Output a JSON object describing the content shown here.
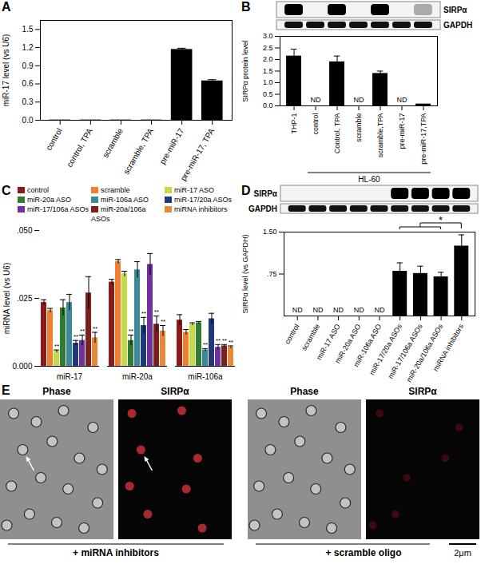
{
  "chart_data": [
    {
      "type": "bar",
      "title": "A",
      "ylabel": "miR-17 level (vs U6)",
      "categories": [
        "control",
        "control, TPA",
        "scramble",
        "scramble, TPA",
        "pre-miR-17",
        "pre-miR-17, TPA"
      ],
      "values": [
        0.005,
        0.005,
        0.005,
        0.005,
        1.17,
        0.65
      ],
      "errors": [
        null,
        null,
        null,
        null,
        0.02,
        0.02
      ],
      "color": "#000000",
      "ylim": [
        0,
        1.65
      ],
      "yticks": [
        {
          "value": 0,
          "label": "0.0"
        },
        0.3,
        0.6,
        0.9,
        1.2,
        1.5
      ]
    },
    {
      "type": "bar",
      "title": "B",
      "ylabel": "SIRPα protein level",
      "categories": [
        "THP-1",
        "control",
        "Control, TPA",
        "scramble",
        "scramble,TPA",
        "pre-miR-17",
        "pre-miR-17,TPA"
      ],
      "values": [
        2.15,
        null,
        1.9,
        null,
        1.4,
        null,
        0.08
      ],
      "errors": [
        0.3,
        null,
        0.25,
        null,
        0.1,
        null,
        null
      ],
      "value_labels": [
        null,
        "ND",
        null,
        "ND",
        null,
        "ND",
        null
      ],
      "color": "#000000",
      "ylim": [
        0,
        3
      ],
      "yticks": [
        {
          "value": 0,
          "label": "0.0"
        },
        0.5,
        {
          "value": 1,
          "label": "1.0"
        },
        1.5,
        {
          "value": 2,
          "label": "2.0"
        },
        2.5,
        {
          "value": 3,
          "label": "3.0"
        }
      ],
      "blot_labels": [
        "SIRPα",
        "GAPDH"
      ],
      "group": {
        "label": "HL-60",
        "categories": [
          "control",
          "Control, TPA",
          "scramble",
          "scramble,TPA",
          "pre-miR-17",
          "pre-miR-17,TPA"
        ]
      }
    },
    {
      "type": "bar",
      "title": "C",
      "ylabel": "miRNA level (vs U6)",
      "categories": [
        "miR-17",
        "miR-20a",
        "miR-106a"
      ],
      "legend": "top",
      "ylim": [
        0,
        0.05
      ],
      "yticks": [
        {
          "value": 0,
          "label": "0.000"
        },
        {
          "value": 0.025,
          "label": ".025"
        },
        {
          "value": 0.05,
          "label": ".050"
        }
      ],
      "series": [
        {
          "name": "control",
          "color": "#8B1A1A",
          "values": [
            0.0235,
            0.031,
            0.017
          ],
          "errors": [
            0.001,
            0.001,
            0.002
          ],
          "significance": [
            null,
            null,
            null
          ]
        },
        {
          "name": "scramble",
          "color": "#F08030",
          "values": [
            0.0205,
            0.0385,
            0.0125
          ],
          "errors": [
            0.0008,
            0.0008,
            0.001
          ],
          "significance": [
            null,
            null,
            null
          ]
        },
        {
          "name": "miR-17 ASO",
          "color": "#C5D94A",
          "values": [
            0.0055,
            0.034,
            0.0155
          ],
          "errors": [
            0.0005,
            0.001,
            0.0005
          ],
          "significance": [
            "**",
            null,
            null
          ]
        },
        {
          "name": "miR-20a ASO",
          "color": "#2E7D32",
          "values": [
            0.0215,
            0.0095,
            0.016
          ],
          "errors": [
            0.003,
            0.002,
            0.0005
          ],
          "significance": [
            null,
            "**",
            null
          ]
        },
        {
          "name": "miR-106a ASO",
          "color": "#3A8A9A",
          "values": [
            0.0235,
            0.0355,
            0.006
          ],
          "errors": [
            0.003,
            0.003,
            0.0005
          ],
          "significance": [
            null,
            null,
            "**"
          ]
        },
        {
          "name": "miR-17/20a ASOs",
          "color": "#1F3A7A",
          "values": [
            0.0085,
            0.015,
            0.0175
          ],
          "errors": [
            0.001,
            0.003,
            0.002
          ],
          "significance": [
            "**",
            "**",
            null
          ]
        },
        {
          "name": "miR-17/106a ASOs",
          "color": "#7030A0",
          "values": [
            0.0095,
            0.0375,
            0.007
          ],
          "errors": [
            0.002,
            0.004,
            0.001
          ],
          "significance": [
            "**",
            null,
            "**"
          ]
        },
        {
          "name": "miR-20a/106a ASOs",
          "color": "#7B2020",
          "values": [
            0.027,
            0.0155,
            0.0075
          ],
          "errors": [
            0.006,
            0.003,
            0.0005
          ],
          "significance": [
            null,
            "**",
            "**"
          ]
        },
        {
          "name": "miRNA inhibitors",
          "color": "#E8893A",
          "values": [
            0.0105,
            0.013,
            0.007
          ],
          "errors": [
            0.002,
            0.002,
            0.0005
          ],
          "significance": [
            "**",
            "**",
            "**"
          ]
        }
      ]
    },
    {
      "type": "bar",
      "title": "D",
      "ylabel": "SIRPα level (vs GAPDH)",
      "categories": [
        "control",
        "scramble",
        "miR-17 ASO",
        "miR-20a ASO",
        "miR-106a ASO",
        "miR-17/20a ASOs",
        "miR-17/106a ASOs",
        "miR-20a/106a ASOs",
        "miRNA inhibitors"
      ],
      "values": [
        null,
        null,
        null,
        null,
        null,
        0.8,
        0.76,
        0.7,
        1.25
      ],
      "errors": [
        null,
        null,
        null,
        null,
        null,
        0.15,
        0.13,
        0.08,
        0.2
      ],
      "value_labels": [
        "ND",
        "ND",
        "ND",
        "ND",
        "ND",
        null,
        null,
        null,
        null
      ],
      "color": "#000000",
      "ylim": [
        0,
        1.5
      ],
      "yticks": [
        {
          "value": 0.75,
          "label": ".75"
        },
        {
          "value": 1.5,
          "label": "1.50"
        }
      ],
      "blot_labels": [
        "SIRPα",
        "GAPDH"
      ],
      "significance": {
        "label": "*",
        "from": [
          "miR-17/20a ASOs",
          "miR-17/106a ASOs",
          "miR-20a/106a ASOs"
        ],
        "to": "miRNA inhibitors"
      }
    },
    {
      "type": "image",
      "title": "E",
      "images": [
        {
          "group": "+ miRNA inhibitors",
          "channels": [
            "Phase",
            "SIRPα"
          ]
        },
        {
          "group": "+ scramble oligo",
          "channels": [
            "Phase",
            "SIRPα"
          ]
        }
      ],
      "scale_bar": "2μm"
    }
  ]
}
